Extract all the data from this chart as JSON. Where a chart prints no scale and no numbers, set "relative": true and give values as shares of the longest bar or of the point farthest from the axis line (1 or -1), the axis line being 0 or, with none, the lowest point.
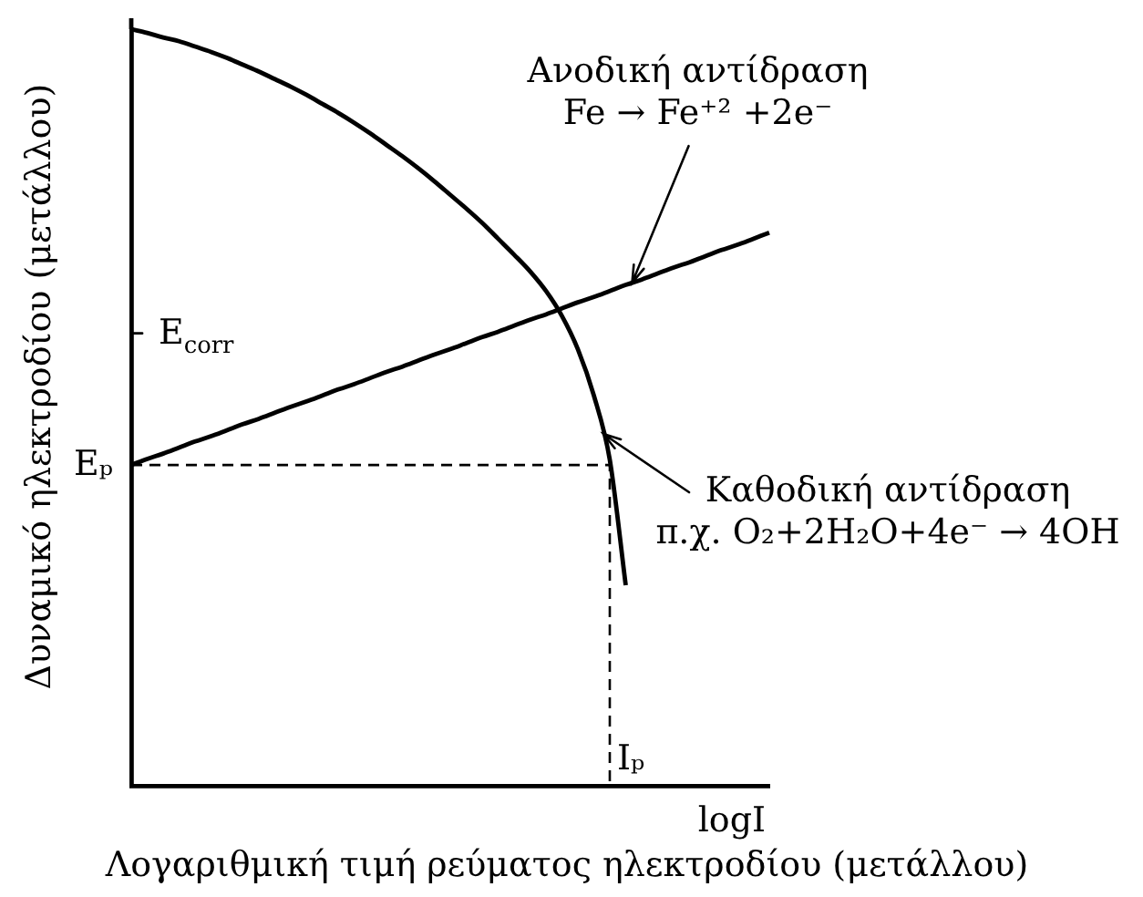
{
  "chart_data": {
    "type": "line",
    "xlabel": "Λογαριθμική τιμή ρεύματος ηλεκτροδίου (μετάλλου)",
    "ylabel": "Δυναμικό ηλεκτροδίου (μετάλλου)",
    "relative": true,
    "marker": "none",
    "categories": [
      null,
      null,
      null,
      null,
      null,
      null,
      null,
      null,
      null,
      null,
      null,
      null,
      null,
      null,
      null,
      null,
      null,
      null,
      null,
      null,
      null,
      null,
      null,
      null,
      null,
      null,
      null,
      null,
      null,
      null,
      null,
      null,
      null,
      null,
      null,
      null,
      null,
      null,
      null,
      null,
      null
    ],
    "series": [
      {
        "color": "#000000",
        "values": [
          0.424,
          0.432,
          0.439,
          0.447,
          0.455,
          0.462,
          0.47,
          0.478,
          0.485,
          0.493,
          0.501,
          0.508,
          0.516,
          0.524,
          0.531,
          0.539,
          0.547,
          0.554,
          0.562,
          0.57,
          0.577,
          0.585,
          0.593,
          0.6,
          0.608,
          0.616,
          0.623,
          0.631,
          0.639,
          0.646,
          0.654,
          0.662,
          0.669,
          0.677,
          0.685,
          0.692,
          0.7,
          0.708,
          0.715,
          0.723,
          0.731
        ]
      },
      {
        "color": "#000000",
        "values": [
          1,
          0.995,
          0.989,
          0.984,
          0.977,
          0.97,
          0.962,
          0.953,
          0.944,
          0.934,
          0.924,
          0.913,
          0.901,
          0.889,
          0.876,
          0.862,
          0.847,
          0.832,
          0.816,
          0.799,
          0.781,
          0.763,
          0.744,
          0.723,
          0.702,
          0.68,
          0.654,
          0.621,
          0.577,
          0.516,
          0.431,
          0.265,
          null,
          null,
          null,
          null,
          null,
          null,
          null,
          null,
          null
        ]
      },
      {
        "type": "step",
        "color": "#000000",
        "line_style": "dashed",
        "values": [
          0.424,
          0.424,
          0.424,
          0.424,
          0.424,
          0.424,
          0.424,
          0.424,
          0.424,
          0.424,
          0.424,
          0.424,
          0.424,
          0.424,
          0.424,
          0.424,
          0.424,
          0.424,
          0.424,
          0.424,
          0.424,
          0.424,
          0.424,
          0.424,
          0.424,
          0.424,
          0.424,
          0.424,
          0.424,
          0.424,
          0,
          null,
          null,
          null,
          null,
          null,
          null,
          null,
          null,
          null,
          null
        ]
      }
    ],
    "annotations": [
      "Ανοδική αντίδραση\nFe → Fe⁺² +2e⁻",
      "Καθοδική αντίδραση\nπ.χ. O₂+2H₂O+4e⁻ → 4OH",
      "E$_{corr}$",
      "Eₚ",
      "Iₚ",
      "logI"
    ]
  }
}
